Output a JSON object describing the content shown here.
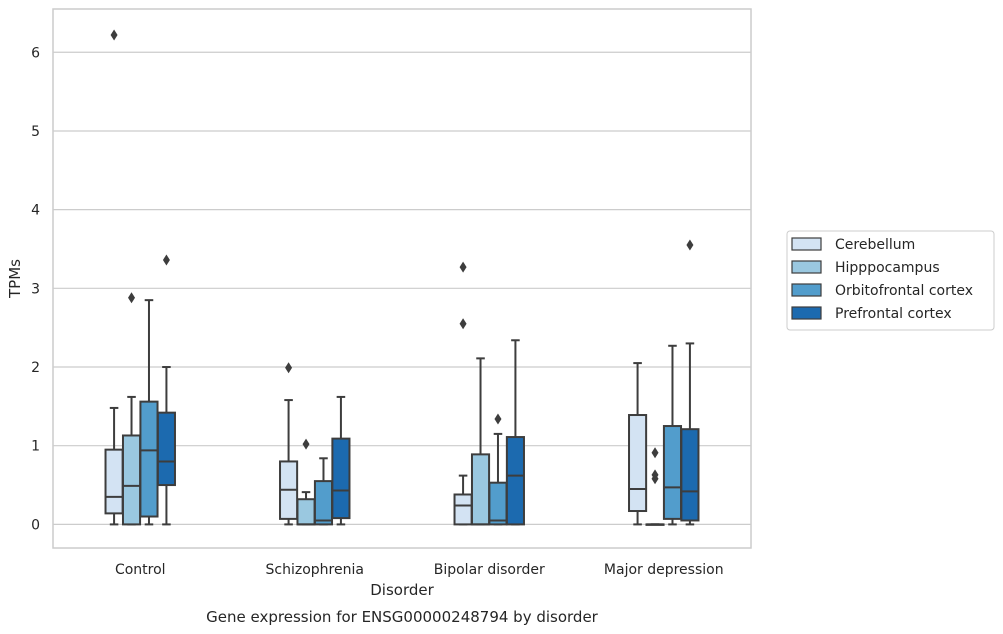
{
  "chart_data": {
    "type": "box",
    "caption": "Gene expression for ENSG00000248794 by disorder",
    "xlabel": "Disorder",
    "ylabel": "TPMs",
    "ylim": [
      -0.3,
      6.55
    ],
    "yticks": [
      "0",
      "1",
      "2",
      "3",
      "4",
      "5",
      "6"
    ],
    "grid": "horizontal",
    "legend_position": "right",
    "categories": [
      "Control",
      "Schizophrenia",
      "Bipolar disorder",
      "Major depression"
    ],
    "series": [
      {
        "name": "Cerebellum",
        "color": "#d3e3f3",
        "boxes": [
          {
            "min": 0,
            "q1": 0.14,
            "median": 0.35,
            "q3": 0.95,
            "max": 1.48,
            "outliers": [
              6.22
            ]
          },
          {
            "min": 0,
            "q1": 0.07,
            "median": 0.44,
            "q3": 0.8,
            "max": 1.58,
            "outliers": [
              1.99
            ]
          },
          {
            "min": 0,
            "q1": 0,
            "median": 0.24,
            "q3": 0.38,
            "max": 0.62,
            "outliers": [
              2.55,
              3.27
            ]
          },
          {
            "min": 0,
            "q1": 0.17,
            "median": 0.45,
            "q3": 1.39,
            "max": 2.05,
            "outliers": []
          }
        ]
      },
      {
        "name": "Hipppocampus",
        "color": "#9ac8e0",
        "boxes": [
          {
            "min": 0,
            "q1": 0,
            "median": 0.49,
            "q3": 1.13,
            "max": 1.62,
            "outliers": [
              2.88
            ]
          },
          {
            "min": 0,
            "q1": 0,
            "median": 0.0,
            "q3": 0.32,
            "max": 0.41,
            "outliers": [
              1.02
            ]
          },
          {
            "min": 0,
            "q1": 0,
            "median": 0.0,
            "q3": 0.89,
            "max": 2.11,
            "outliers": []
          },
          {
            "min": 0,
            "q1": 0,
            "median": 0.0,
            "q3": 0.0,
            "max": 0.0,
            "outliers": [
              0.58,
              0.63,
              0.91
            ]
          }
        ]
      },
      {
        "name": "Orbitofrontal cortex",
        "color": "#529dcc",
        "boxes": [
          {
            "min": 0,
            "q1": 0.1,
            "median": 0.94,
            "q3": 1.56,
            "max": 2.85,
            "outliers": []
          },
          {
            "min": 0,
            "q1": 0,
            "median": 0.05,
            "q3": 0.55,
            "max": 0.84,
            "outliers": []
          },
          {
            "min": 0,
            "q1": 0,
            "median": 0.05,
            "q3": 0.53,
            "max": 1.15,
            "outliers": [
              1.34
            ]
          },
          {
            "min": 0,
            "q1": 0.07,
            "median": 0.47,
            "q3": 1.25,
            "max": 2.27,
            "outliers": []
          }
        ]
      },
      {
        "name": "Prefrontal cortex",
        "color": "#1c6aaf",
        "boxes": [
          {
            "min": 0,
            "q1": 0.5,
            "median": 0.8,
            "q3": 1.42,
            "max": 2.0,
            "outliers": [
              3.36
            ]
          },
          {
            "min": 0,
            "q1": 0.08,
            "median": 0.43,
            "q3": 1.09,
            "max": 1.62,
            "outliers": []
          },
          {
            "min": 0,
            "q1": 0,
            "median": 0.62,
            "q3": 1.11,
            "max": 2.34,
            "outliers": []
          },
          {
            "min": 0,
            "q1": 0.05,
            "median": 0.42,
            "q3": 1.21,
            "max": 2.3,
            "outliers": [
              3.55
            ]
          }
        ]
      }
    ]
  }
}
